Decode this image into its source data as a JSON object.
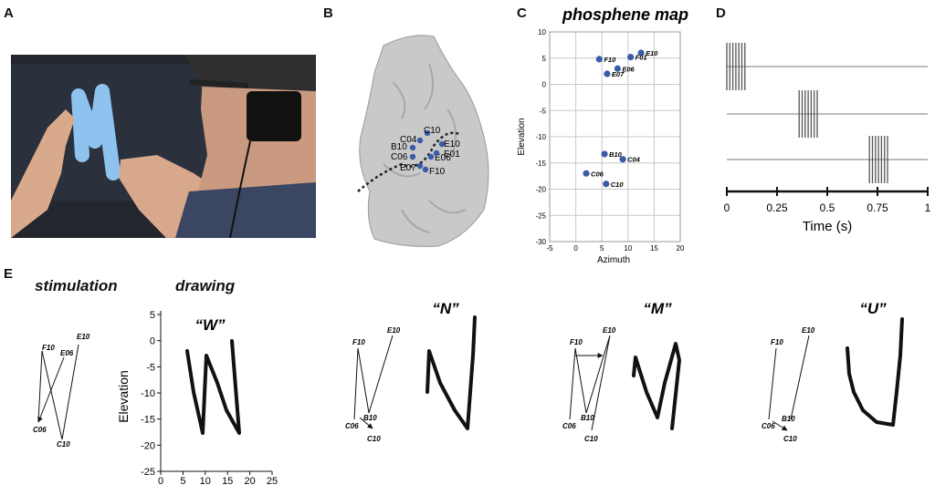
{
  "panels": {
    "a": "A",
    "b": "B",
    "c": "C",
    "d": "D",
    "e": "E"
  },
  "phosphene": {
    "title": "phosphene map",
    "xlabel": "Azimuth",
    "ylabel": "Elevation",
    "xticks": [
      "-5",
      "0",
      "5",
      "10",
      "15",
      "20"
    ],
    "yticks": [
      "10",
      "5",
      "0",
      "-5",
      "-10",
      "-15",
      "-20",
      "-25",
      "-30"
    ]
  },
  "brain_labels": [
    "C10",
    "C04",
    "B10",
    "C06",
    "E07",
    "E06",
    "E10",
    "E01",
    "F10"
  ],
  "timeline": {
    "xlabel": "Time (s)",
    "ticks": [
      "0",
      "0.25",
      "0.5",
      "0.75",
      "1"
    ]
  },
  "stimulation": {
    "title": "stimulation",
    "drawing_title": "drawing"
  },
  "letters": [
    {
      "name": "“W”",
      "labels": [
        "F10",
        "E06",
        "E10",
        "C06",
        "C10"
      ]
    },
    {
      "name": "“N”",
      "labels": [
        "F10",
        "E10",
        "B10",
        "C06",
        "C10"
      ]
    },
    {
      "name": "“M”",
      "labels": [
        "F10",
        "E10",
        "B10",
        "C06",
        "C10"
      ]
    },
    {
      "name": "“U”",
      "labels": [
        "F10",
        "E10",
        "C06",
        "B10",
        "C10"
      ]
    }
  ],
  "drawing_axes": {
    "ylabel": "Elevation",
    "xticks": [
      "0",
      "5",
      "10",
      "15",
      "20",
      "25"
    ],
    "yticks": [
      "5",
      "0",
      "-5",
      "-10",
      "-15",
      "-20",
      "-25"
    ]
  },
  "chart_data": {
    "type": "scatter",
    "title": "phosphene map",
    "xlabel": "Azimuth",
    "ylabel": "Elevation",
    "xlim": [
      -5,
      20
    ],
    "ylim": [
      -30,
      10
    ],
    "grid": true,
    "points": [
      {
        "label": "E10",
        "x": 12.5,
        "y": 6
      },
      {
        "label": "F01",
        "x": 10.5,
        "y": 5.2
      },
      {
        "label": "F10",
        "x": 4.5,
        "y": 4.8
      },
      {
        "label": "E06",
        "x": 8,
        "y": 3
      },
      {
        "label": "E07",
        "x": 6,
        "y": 2
      },
      {
        "label": "B10",
        "x": 5.5,
        "y": -13.3
      },
      {
        "label": "C04",
        "x": 9,
        "y": -14.3
      },
      {
        "label": "C06",
        "x": 2,
        "y": -17
      },
      {
        "label": "C10",
        "x": 5.8,
        "y": -19
      }
    ]
  },
  "colors": {
    "dot": "#3a5ca8",
    "grid": "#c9c9c9",
    "pulse": "#555555",
    "skin": "#c9c9c9"
  }
}
